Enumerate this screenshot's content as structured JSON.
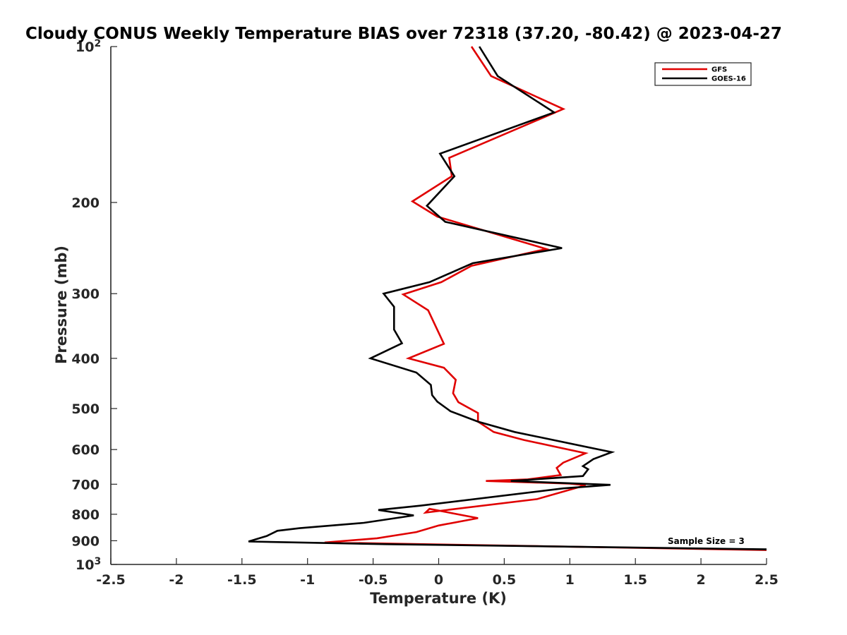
{
  "chart_data": {
    "type": "line",
    "title": "Cloudy CONUS Weekly Temperature BIAS over 72318 (37.20, -80.42) @ 2023-04-27",
    "xlabel": "Temperature (K)",
    "ylabel": "Pressure (mb)",
    "xlim": [
      -2.5,
      2.5
    ],
    "ylim": [
      100,
      1000
    ],
    "yscale": "log",
    "yreversed": true,
    "xticks": [
      -2.5,
      -2,
      -1.5,
      -1,
      -0.5,
      0,
      0.5,
      1,
      1.5,
      2,
      2.5
    ],
    "xtick_labels": [
      "-2.5",
      "-2",
      "-1.5",
      "-1",
      "-0.5",
      "0",
      "0.5",
      "1",
      "1.5",
      "2",
      "2.5"
    ],
    "yticks": [
      {
        "value": 100,
        "base": "10",
        "exp": "2"
      },
      {
        "value": 200,
        "label": "200"
      },
      {
        "value": 300,
        "label": "300"
      },
      {
        "value": 400,
        "label": "400"
      },
      {
        "value": 500,
        "label": "500"
      },
      {
        "value": 600,
        "label": "600"
      },
      {
        "value": 700,
        "label": "700"
      },
      {
        "value": 800,
        "label": "800"
      },
      {
        "value": 900,
        "label": "900"
      },
      {
        "value": 1000,
        "base": "10",
        "exp": "3"
      }
    ],
    "legend_position": "top-right",
    "series": [
      {
        "name": "GFS",
        "color": "#e00000",
        "x": [
          0.25,
          0.4,
          0.95,
          0.08,
          0.1,
          -0.2,
          -0.01,
          0.82,
          0.25,
          0.02,
          -0.27,
          -0.08,
          0.04,
          -0.23,
          0.04,
          0.13,
          0.11,
          0.15,
          0.3,
          0.3,
          0.42,
          0.65,
          1.12,
          0.95,
          0.9,
          0.93,
          0.68,
          0.36,
          1.0,
          1.12,
          0.75,
          -0.1,
          -0.07,
          0.3,
          0.0,
          -0.17,
          -0.47,
          -0.87,
          2.5
        ],
        "y": [
          100,
          114,
          132,
          164,
          178,
          199,
          213,
          246,
          265,
          285,
          301,
          323,
          375,
          400,
          417,
          440,
          467,
          486,
          510,
          530,
          555,
          575,
          610,
          636,
          651,
          672,
          685,
          690,
          698,
          703,
          748,
          794,
          781,
          814,
          841,
          866,
          890,
          907,
          938
        ]
      },
      {
        "name": "GOES-16",
        "color": "#000000",
        "x": [
          0.31,
          0.45,
          0.88,
          0.01,
          0.12,
          -0.09,
          0.05,
          0.94,
          0.26,
          -0.07,
          -0.42,
          -0.34,
          -0.34,
          -0.28,
          -0.52,
          -0.17,
          -0.06,
          -0.05,
          -0.01,
          0.09,
          0.3,
          0.58,
          1.32,
          1.18,
          1.1,
          1.14,
          1.1,
          0.55,
          1.31,
          0.95,
          -0.14,
          -0.46,
          -0.19,
          -0.57,
          -1.06,
          -1.23,
          -1.31,
          -1.45,
          -0.4,
          2.5
        ],
        "y": [
          100,
          114,
          134,
          161,
          178,
          203,
          218,
          245,
          262,
          285,
          300,
          318,
          352,
          374,
          400,
          426,
          450,
          471,
          485,
          506,
          530,
          555,
          607,
          626,
          646,
          655,
          675,
          690,
          702,
          713,
          770,
          785,
          804,
          831,
          851,
          861,
          881,
          903,
          914,
          935
        ]
      }
    ],
    "annotations": [
      "Sample Size = 3"
    ]
  }
}
